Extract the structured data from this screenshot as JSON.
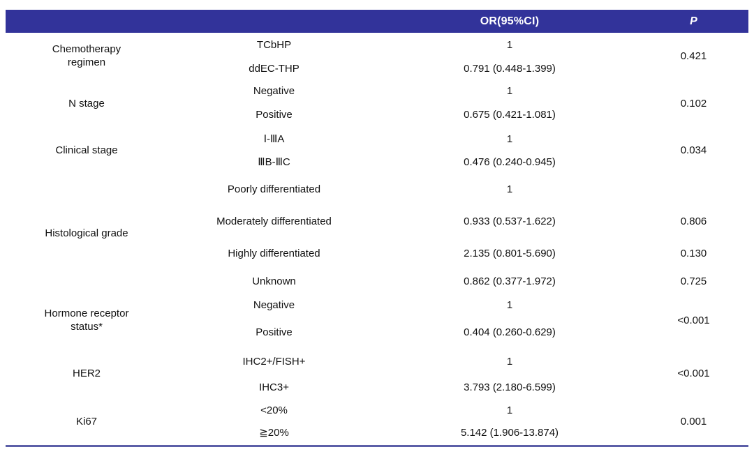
{
  "colors": {
    "header_bg": "#32339a",
    "header_text": "#ffffff",
    "body_text": "#111111",
    "bottom_rule": "#5c5fa8",
    "page_bg": "#ffffff"
  },
  "table": {
    "header": {
      "category": "",
      "subgroup": "",
      "or_label": "OR(95%CI)",
      "p_label": "P"
    },
    "groups": [
      {
        "category": "Chemotherapy\nregimen",
        "p": "0.421",
        "rows": [
          {
            "label": "TCbHP",
            "or": "1"
          },
          {
            "label": "ddEC-THP",
            "or": "0.791 (0.448-1.399)"
          }
        ]
      },
      {
        "category": "N stage",
        "p": "0.102",
        "rows": [
          {
            "label": "Negative",
            "or": "1"
          },
          {
            "label": "Positive",
            "or": "0.675 (0.421-1.081)"
          }
        ]
      },
      {
        "category": "Clinical stage",
        "p": "0.034",
        "rows": [
          {
            "label": "Ⅰ-ⅢA",
            "or": "1"
          },
          {
            "label": "ⅢB-ⅢC",
            "or": "0.476 (0.240-0.945)"
          }
        ]
      },
      {
        "category": "Histological grade",
        "rows": [
          {
            "label": "Poorly differentiated",
            "or": "1",
            "p": ""
          },
          {
            "label": "Moderately differentiated",
            "or": "0.933 (0.537-1.622)",
            "p": "0.806"
          },
          {
            "label": "Highly differentiated",
            "or": "2.135 (0.801-5.690)",
            "p": "0.130"
          },
          {
            "label": "Unknown",
            "or": "0.862 (0.377-1.972)",
            "p": "0.725"
          }
        ]
      },
      {
        "category": "Hormone receptor\nstatus*",
        "p": "<0.001",
        "rows": [
          {
            "label": "Negative",
            "or": "1"
          },
          {
            "label": "Positive",
            "or": "0.404 (0.260-0.629)"
          }
        ]
      },
      {
        "category": "HER2",
        "p": "<0.001",
        "rows": [
          {
            "label": "IHC2+/FISH+",
            "or": "1"
          },
          {
            "label": "IHC3+",
            "or": "3.793 (2.180-6.599)"
          }
        ]
      },
      {
        "category": "Ki67",
        "p": "0.001",
        "rows": [
          {
            "label": "<20%",
            "or": "1"
          },
          {
            "label": "≧20%",
            "or": "5.142 (1.906-13.874)"
          }
        ]
      }
    ]
  }
}
